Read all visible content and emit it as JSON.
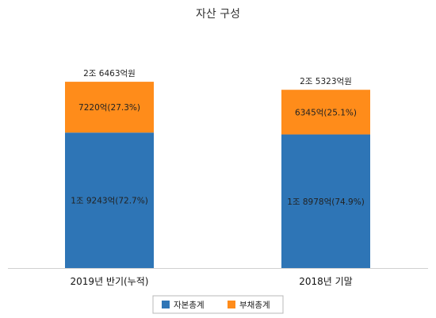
{
  "chart_data": {
    "type": "bar",
    "stacked": true,
    "title": "자산 구성",
    "categories": [
      "2019년 반기(누적)",
      "2018년 기말"
    ],
    "series": [
      {
        "name": "자본총계",
        "color": "#2e75b6",
        "values": [
          19243,
          18978
        ],
        "labels": [
          "1조 9243억(72.7%)",
          "1조 8978억(74.9%)"
        ]
      },
      {
        "name": "부채총계",
        "color": "#ff8c1a",
        "values": [
          7220,
          6345
        ],
        "labels": [
          "7220억(27.3%)",
          "6345억(25.1%)"
        ]
      }
    ],
    "totals": [
      26463,
      25323
    ],
    "total_labels": [
      "2조 6463억원",
      "2조 5323억원"
    ],
    "ylim": [
      0,
      36500
    ],
    "grid": false,
    "legend_position": "bottom"
  }
}
